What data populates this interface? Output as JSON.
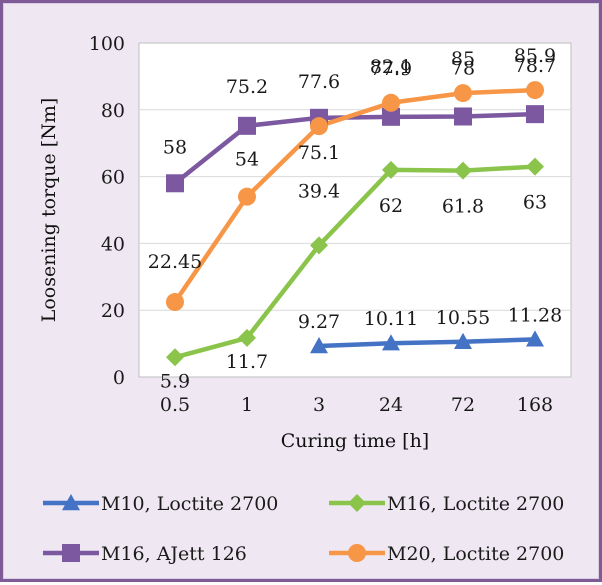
{
  "chart_data": {
    "type": "line",
    "categories": [
      "0.5",
      "1",
      "3",
      "24",
      "72",
      "168"
    ],
    "xlabel": "Curing time [h]",
    "ylabel": "Loosening torque [Nm]",
    "ylim": [
      0,
      100
    ],
    "yticks": [
      "0",
      "20",
      "40",
      "60",
      "80",
      "100"
    ],
    "grid": "horizontal",
    "legend_position": "bottom",
    "series": [
      {
        "name": "M10, Loctite 2700",
        "color": "#4472c4",
        "marker": "triangle",
        "values": [
          null,
          null,
          9.27,
          10.11,
          10.55,
          11.28
        ],
        "labels": [
          "",
          "",
          "9.27",
          "10.11",
          "10.55",
          "11.28"
        ]
      },
      {
        "name": "M16, Loctite 2700",
        "color": "#8ac44a",
        "marker": "diamond",
        "values": [
          5.9,
          11.7,
          39.4,
          62,
          61.8,
          63
        ],
        "labels": [
          "5.9",
          "11.7",
          "39.4",
          "62",
          "61.8",
          "63"
        ]
      },
      {
        "name": "M16, AJett 126",
        "color": "#7b58a0",
        "marker": "square",
        "values": [
          58,
          75.2,
          77.6,
          77.9,
          78,
          78.7
        ],
        "labels": [
          "58",
          "75.2",
          "77.6",
          "77.9",
          "78",
          "78.7"
        ]
      },
      {
        "name": "M20, Loctite 2700",
        "color": "#f79646",
        "marker": "circle",
        "values": [
          22.45,
          54,
          75.1,
          82.1,
          85,
          85.9
        ],
        "labels": [
          "22.45",
          "54",
          "75.1",
          "82.1",
          "85",
          "85.9"
        ]
      }
    ]
  }
}
